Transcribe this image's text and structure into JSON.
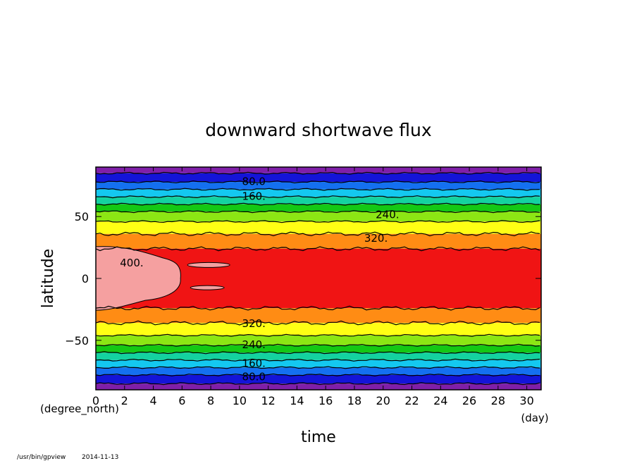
{
  "chart_data": {
    "type": "heatmap",
    "subtype": "filled-contour",
    "title": "downward shortwave flux",
    "xlabel": "time",
    "x_unit": "(day)",
    "ylabel": "latitude",
    "y_unit": "(degree_north)",
    "xlim": [
      0,
      31
    ],
    "ylim": [
      -90,
      90
    ],
    "xticks": [
      "0",
      "2",
      "4",
      "6",
      "8",
      "10",
      "12",
      "14",
      "16",
      "18",
      "20",
      "22",
      "24",
      "26",
      "28",
      "30"
    ],
    "yticks": [
      "50",
      "0",
      "−50"
    ],
    "grid": false,
    "contour_interval": 40,
    "bands": [
      {
        "lat_from": 85,
        "lat_to": 90,
        "flux": "0-40",
        "color": "#7f1fa8"
      },
      {
        "lat_from": 78,
        "lat_to": 85,
        "flux": "40-80",
        "color": "#1414d8"
      },
      {
        "lat_from": 72,
        "lat_to": 78,
        "flux": "80-120",
        "color": "#1470f0"
      },
      {
        "lat_from": 66,
        "lat_to": 72,
        "flux": "120-160",
        "color": "#14c8f0"
      },
      {
        "lat_from": 60,
        "lat_to": 66,
        "flux": "160-200",
        "color": "#14d2a0"
      },
      {
        "lat_from": 54,
        "lat_to": 60,
        "flux": "200-240",
        "color": "#14c814"
      },
      {
        "lat_from": 46,
        "lat_to": 54,
        "flux": "240-280",
        "color": "#8ce614"
      },
      {
        "lat_from": 36,
        "lat_to": 46,
        "flux": "280-320",
        "color": "#ffff14"
      },
      {
        "lat_from": 24,
        "lat_to": 36,
        "flux": "320-360",
        "color": "#ff8c14"
      },
      {
        "lat_from": -24,
        "lat_to": 24,
        "flux": "360-400",
        "color": "#f01414"
      },
      {
        "lat_from": -36,
        "lat_to": -24,
        "flux": "320-360",
        "color": "#ff8c14"
      },
      {
        "lat_from": -46,
        "lat_to": -36,
        "flux": "280-320",
        "color": "#ffff14"
      },
      {
        "lat_from": -54,
        "lat_to": -46,
        "flux": "240-280",
        "color": "#8ce614"
      },
      {
        "lat_from": -60,
        "lat_to": -54,
        "flux": "200-240",
        "color": "#14c814"
      },
      {
        "lat_from": -66,
        "lat_to": -60,
        "flux": "160-200",
        "color": "#14d2a0"
      },
      {
        "lat_from": -72,
        "lat_to": -66,
        "flux": "120-160",
        "color": "#14c8f0"
      },
      {
        "lat_from": -78,
        "lat_to": -72,
        "flux": "80-120",
        "color": "#1470f0"
      },
      {
        "lat_from": -85,
        "lat_to": -78,
        "flux": "40-80",
        "color": "#1414d8"
      },
      {
        "lat_from": -90,
        "lat_to": -85,
        "flux": "0-40",
        "color": "#7f1fa8"
      }
    ],
    "high_region": {
      "flux": ">400",
      "color": "#f5a0a0",
      "x_range": [
        0,
        5.5
      ],
      "lat_range": [
        -20,
        20
      ]
    },
    "contour_labels": [
      {
        "text": "80.0",
        "x": 11,
        "lat": 79
      },
      {
        "text": "160.",
        "x": 11,
        "lat": 67
      },
      {
        "text": "240.",
        "x": 20.3,
        "lat": 52
      },
      {
        "text": "320.",
        "x": 19.5,
        "lat": 33
      },
      {
        "text": "400.",
        "x": 2.5,
        "lat": 13
      },
      {
        "text": "320.",
        "x": 11,
        "lat": -36
      },
      {
        "text": "240.",
        "x": 11,
        "lat": -53
      },
      {
        "text": "160.",
        "x": 11,
        "lat": -68
      },
      {
        "text": "80.0",
        "x": 11,
        "lat": -79
      }
    ]
  },
  "footer": {
    "program": "/usr/bin/gpview",
    "date": "2014-11-13"
  }
}
